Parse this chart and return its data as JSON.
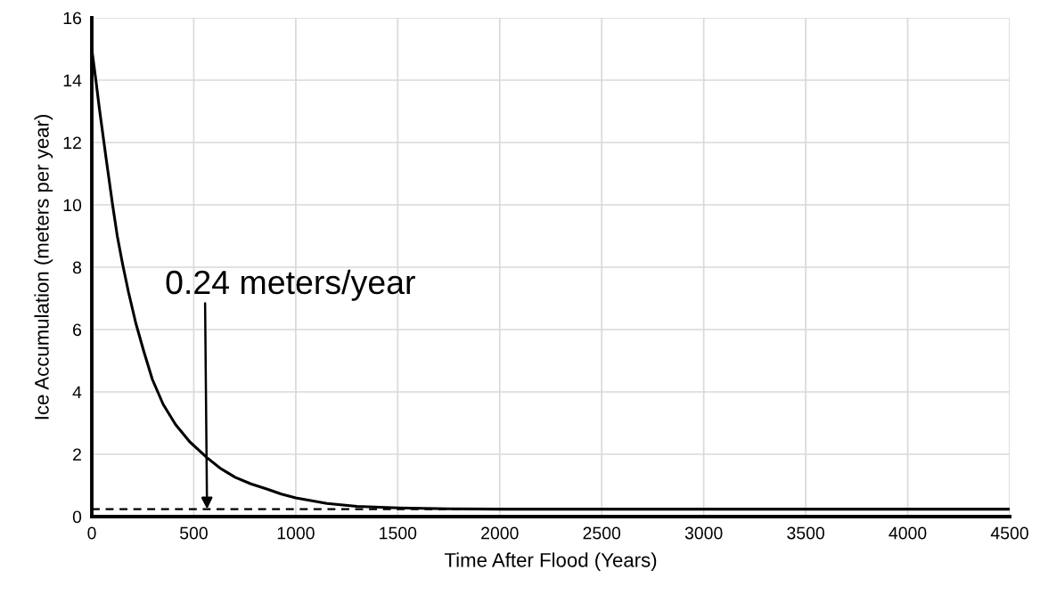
{
  "chart_data": {
    "type": "line",
    "xlabel": "Time After Flood (Years)",
    "ylabel": "Ice Accumulation (meters per year)",
    "x": [
      0,
      20,
      37,
      70,
      102,
      125,
      151,
      180,
      216,
      255,
      297,
      350,
      411,
      480,
      565,
      630,
      703,
      780,
      861,
      930,
      1000,
      1153,
      1300,
      1504,
      1750,
      2000,
      4500
    ],
    "series": [
      {
        "color": "#000000",
        "values": [
          15.0,
          14.0,
          13.1,
          11.5,
          10.0,
          9.0,
          8.1,
          7.2,
          6.2,
          5.3,
          4.4,
          3.6,
          2.95,
          2.4,
          1.89,
          1.55,
          1.26,
          1.05,
          0.88,
          0.72,
          0.6,
          0.42,
          0.33,
          0.28,
          0.25,
          0.24,
          0.24
        ]
      }
    ],
    "xlim": [
      0,
      4500
    ],
    "xticks": [
      0,
      500,
      1000,
      1500,
      2000,
      2500,
      3000,
      3500,
      4000,
      4500
    ],
    "ylim": [
      0,
      16
    ],
    "yticks": [
      0,
      2,
      4,
      6,
      8,
      10,
      12,
      14,
      16
    ],
    "grid": true,
    "marker": "none",
    "line_style": "solid",
    "ref_lines": [
      {
        "axis": "y",
        "value": 0.24,
        "color": "#000000",
        "line_style": "dashed"
      }
    ],
    "annotations": [
      {
        "text": "0.24 meters/year",
        "x": 565,
        "y": 0.24
      }
    ]
  }
}
